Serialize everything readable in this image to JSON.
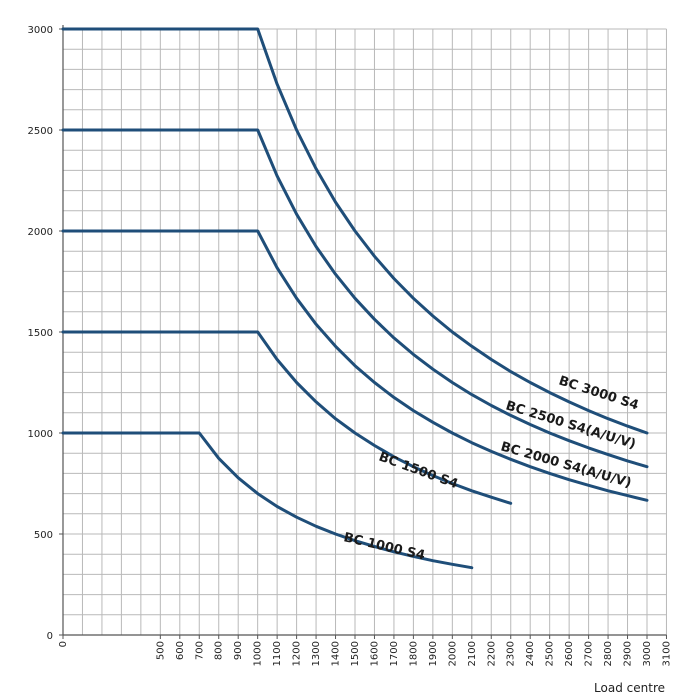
{
  "chart_data": {
    "type": "line",
    "title": "",
    "xlabel": "Load centre",
    "ylabel": "",
    "xlim": [
      0,
      3100
    ],
    "ylim": [
      0,
      3000
    ],
    "x_ticks": [
      0,
      500,
      600,
      700,
      800,
      900,
      1000,
      1100,
      1200,
      1300,
      1400,
      1500,
      1600,
      1700,
      1800,
      1900,
      2000,
      2100,
      2200,
      2300,
      2400,
      2500,
      2600,
      2700,
      2800,
      2900,
      3000,
      3100
    ],
    "y_ticks": [
      0,
      500,
      1000,
      1500,
      2000,
      2500,
      3000
    ],
    "grid": true,
    "line_color": "#1f4e79",
    "series": [
      {
        "name": "BC 3000 S4",
        "x": [
          0,
          1000,
          1100,
          1200,
          1300,
          1400,
          1500,
          1600,
          1700,
          1800,
          1900,
          2000,
          2100,
          2200,
          2300,
          2400,
          2500,
          2600,
          2700,
          2800,
          2900,
          3000
        ],
        "y": [
          3000,
          3000,
          2727,
          2500,
          2308,
          2143,
          2000,
          1875,
          1765,
          1667,
          1579,
          1500,
          1429,
          1364,
          1304,
          1250,
          1200,
          1154,
          1111,
          1071,
          1034,
          1000
        ]
      },
      {
        "name": "BC 2500 S4(A/U/V)",
        "x": [
          0,
          1000,
          1100,
          1200,
          1300,
          1400,
          1500,
          1600,
          1700,
          1800,
          1900,
          2000,
          2100,
          2200,
          2300,
          2400,
          2500,
          2600,
          2700,
          2800,
          2900,
          3000
        ],
        "y": [
          2500,
          2500,
          2273,
          2083,
          1923,
          1786,
          1667,
          1563,
          1471,
          1389,
          1316,
          1250,
          1190,
          1136,
          1087,
          1042,
          1000,
          962,
          926,
          893,
          862,
          833
        ]
      },
      {
        "name": "BC 2000 S4(A/U/V)",
        "x": [
          0,
          1000,
          1100,
          1200,
          1300,
          1400,
          1500,
          1600,
          1700,
          1800,
          1900,
          2000,
          2100,
          2200,
          2300,
          2400,
          2500,
          2600,
          2700,
          2800,
          2900,
          3000
        ],
        "y": [
          2000,
          2000,
          1818,
          1667,
          1538,
          1429,
          1333,
          1250,
          1176,
          1111,
          1053,
          1000,
          952,
          909,
          870,
          833,
          800,
          769,
          741,
          714,
          690,
          667
        ]
      },
      {
        "name": "BC 1500 S4",
        "x": [
          0,
          1000,
          1100,
          1200,
          1300,
          1400,
          1500,
          1600,
          1700,
          1800,
          1900,
          2000,
          2100,
          2200,
          2300
        ],
        "y": [
          1500,
          1500,
          1364,
          1250,
          1154,
          1071,
          1000,
          938,
          882,
          833,
          789,
          750,
          714,
          682,
          652
        ]
      },
      {
        "name": "BC 1000 S4",
        "x": [
          0,
          700,
          800,
          900,
          1000,
          1100,
          1200,
          1300,
          1400,
          1500,
          1600,
          1700,
          1800,
          1900,
          2000,
          2100
        ],
        "y": [
          1000,
          1000,
          875,
          778,
          700,
          636,
          583,
          538,
          500,
          467,
          438,
          412,
          389,
          368,
          350,
          333
        ]
      }
    ]
  }
}
